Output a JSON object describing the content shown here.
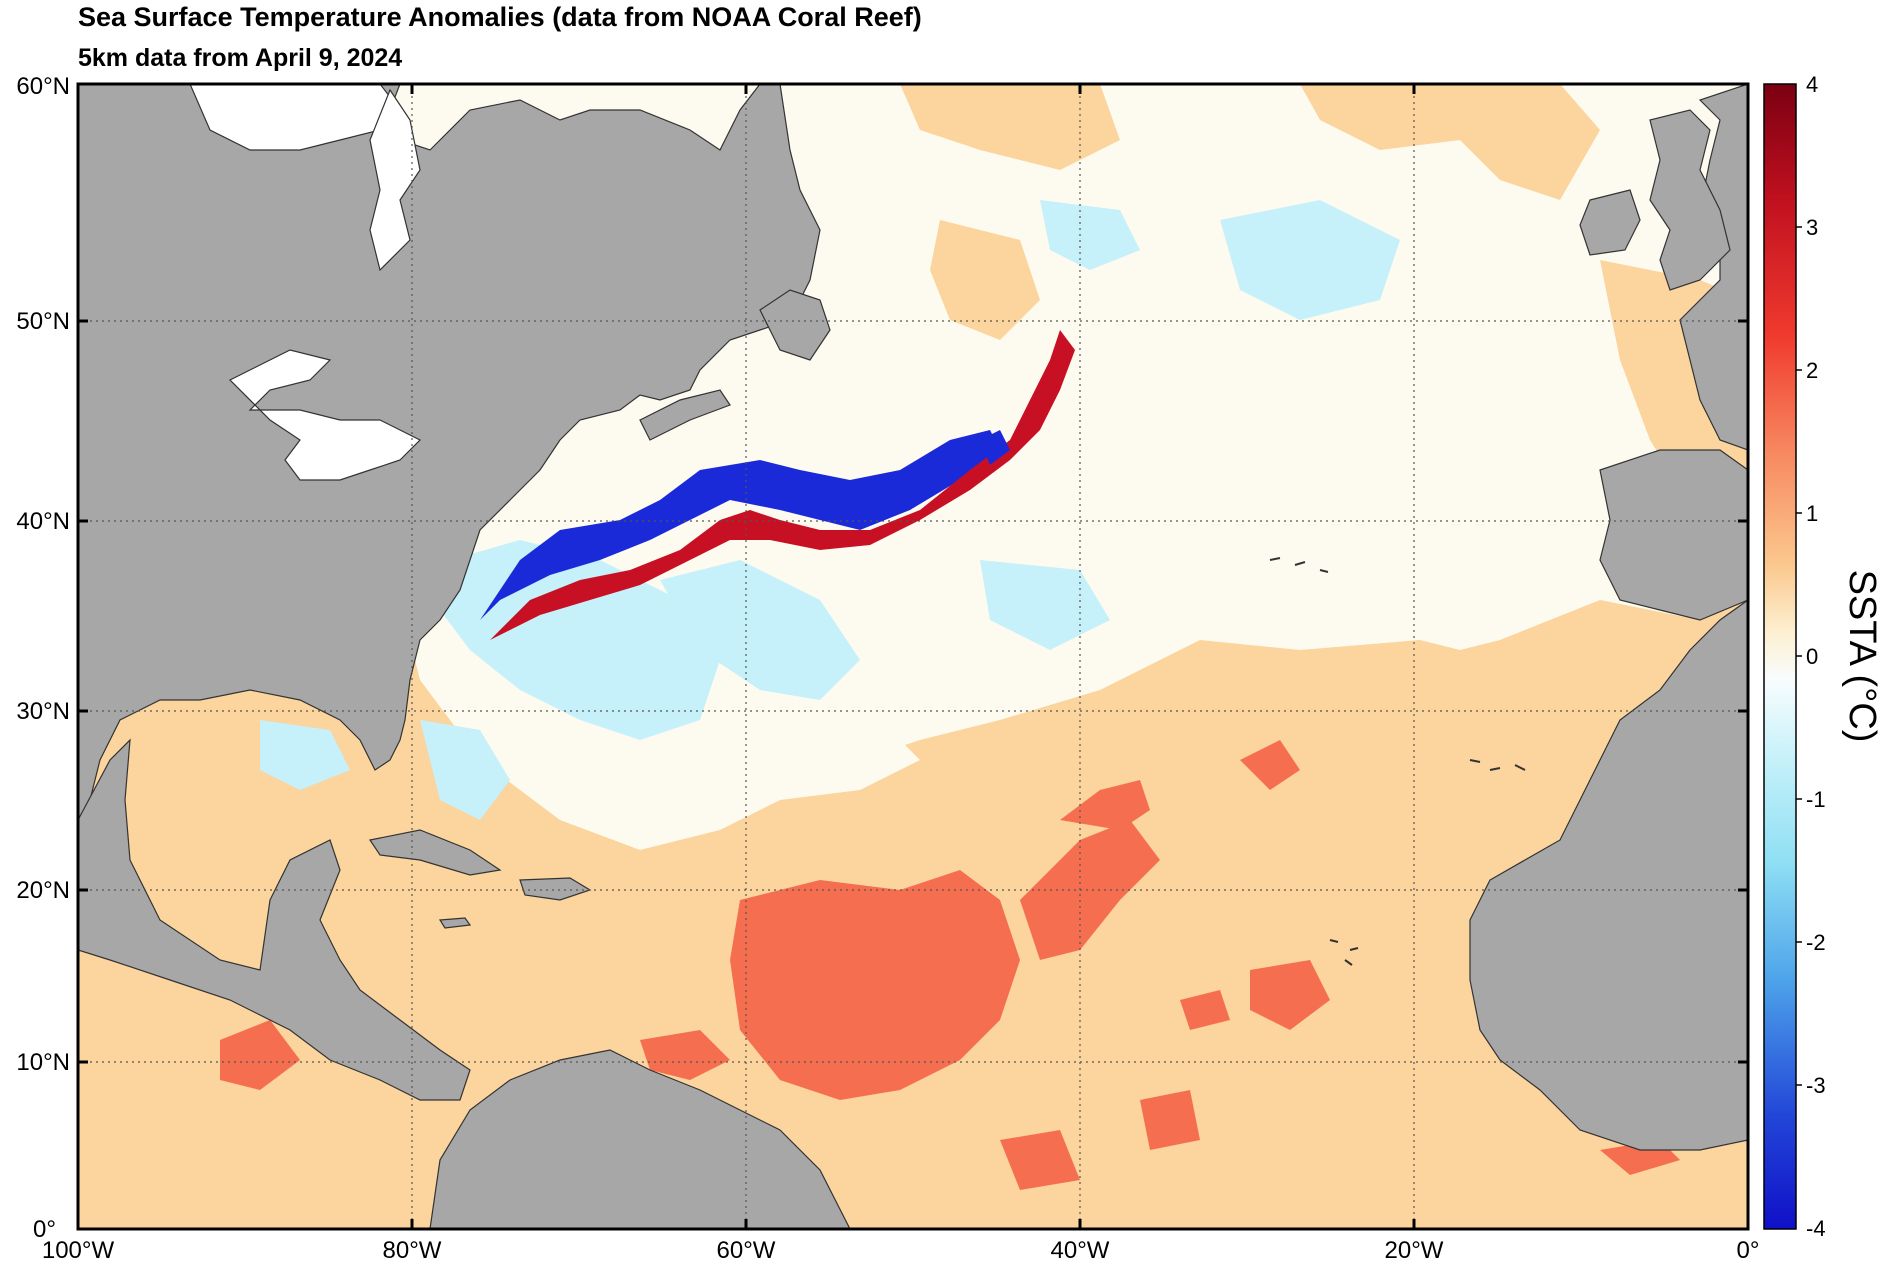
{
  "title": "Sea Surface Temperature Anomalies (data from NOAA Coral Reef)",
  "subtitle": "5km data from April 9, 2024",
  "map": {
    "lat_labels": [
      "60°N",
      "50°N",
      "40°N",
      "30°N",
      "20°N",
      "10°N",
      "0°"
    ],
    "lon_labels": [
      "100°W",
      "80°W",
      "60°W",
      "40°W",
      "20°W",
      "0°"
    ],
    "lat_range": [
      0,
      60
    ],
    "lon_range": [
      -100,
      0
    ],
    "gridlines": "dotted"
  },
  "colorbar": {
    "title": "SSTA (°C)",
    "tick_labels": [
      "4",
      "3",
      "2",
      "1",
      "0",
      "-1",
      "-2",
      "-3",
      "-4"
    ],
    "range": [
      -4,
      4
    ],
    "stops": [
      "#7a0012",
      "#b40920",
      "#e03028",
      "#f46a50",
      "#fbb37a",
      "#fde9c0",
      "#fefbf0",
      "#c8f1fa",
      "#8fe0f4",
      "#55b8ec",
      "#2a6ae4",
      "#1515d0"
    ]
  },
  "colors": {
    "land": "#a7a7a7",
    "warm_mild": "#fbd49e",
    "warm": "#f56e4f",
    "hot": "#c81025",
    "neutral": "#fdfbef",
    "cool_mild": "#c6f0fa",
    "cold": "#1a2ad8"
  }
}
